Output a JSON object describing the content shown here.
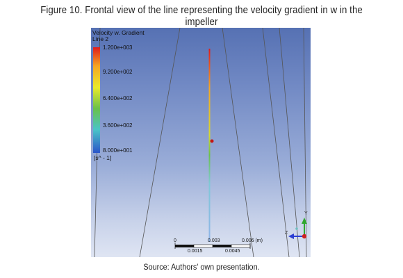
{
  "figure_title": "Figure 10. Frontal view of the line representing the velocity gradient in w in the impeller",
  "source_caption": "Source: Authors' own presentation.",
  "legend": {
    "title": "Velocity w. Gradient",
    "subtitle": "Line 2",
    "ticks": [
      "1.200e+003",
      "9.200e+002",
      "6.400e+002",
      "3.600e+002",
      "8.000e+001"
    ],
    "unit": "[s^ - 1]",
    "colors": [
      "#e01b1b",
      "#f5a623",
      "#eaea2a",
      "#6ac14a",
      "#4ac4c8",
      "#2b55c9"
    ]
  },
  "scale_bar": {
    "top_labels": [
      "0",
      "0.003",
      "0.006 (m)"
    ],
    "bottom_labels": [
      "0.0015",
      "0.0045"
    ]
  },
  "axes_triad": {
    "labels": [
      "Y",
      "Z"
    ],
    "colors": {
      "y": "#2fa82f",
      "z": "#2d3fd3",
      "x": "#cc2222"
    }
  },
  "viewport_background": {
    "top": "#5671b3",
    "bottom": "#dfe5f3"
  }
}
